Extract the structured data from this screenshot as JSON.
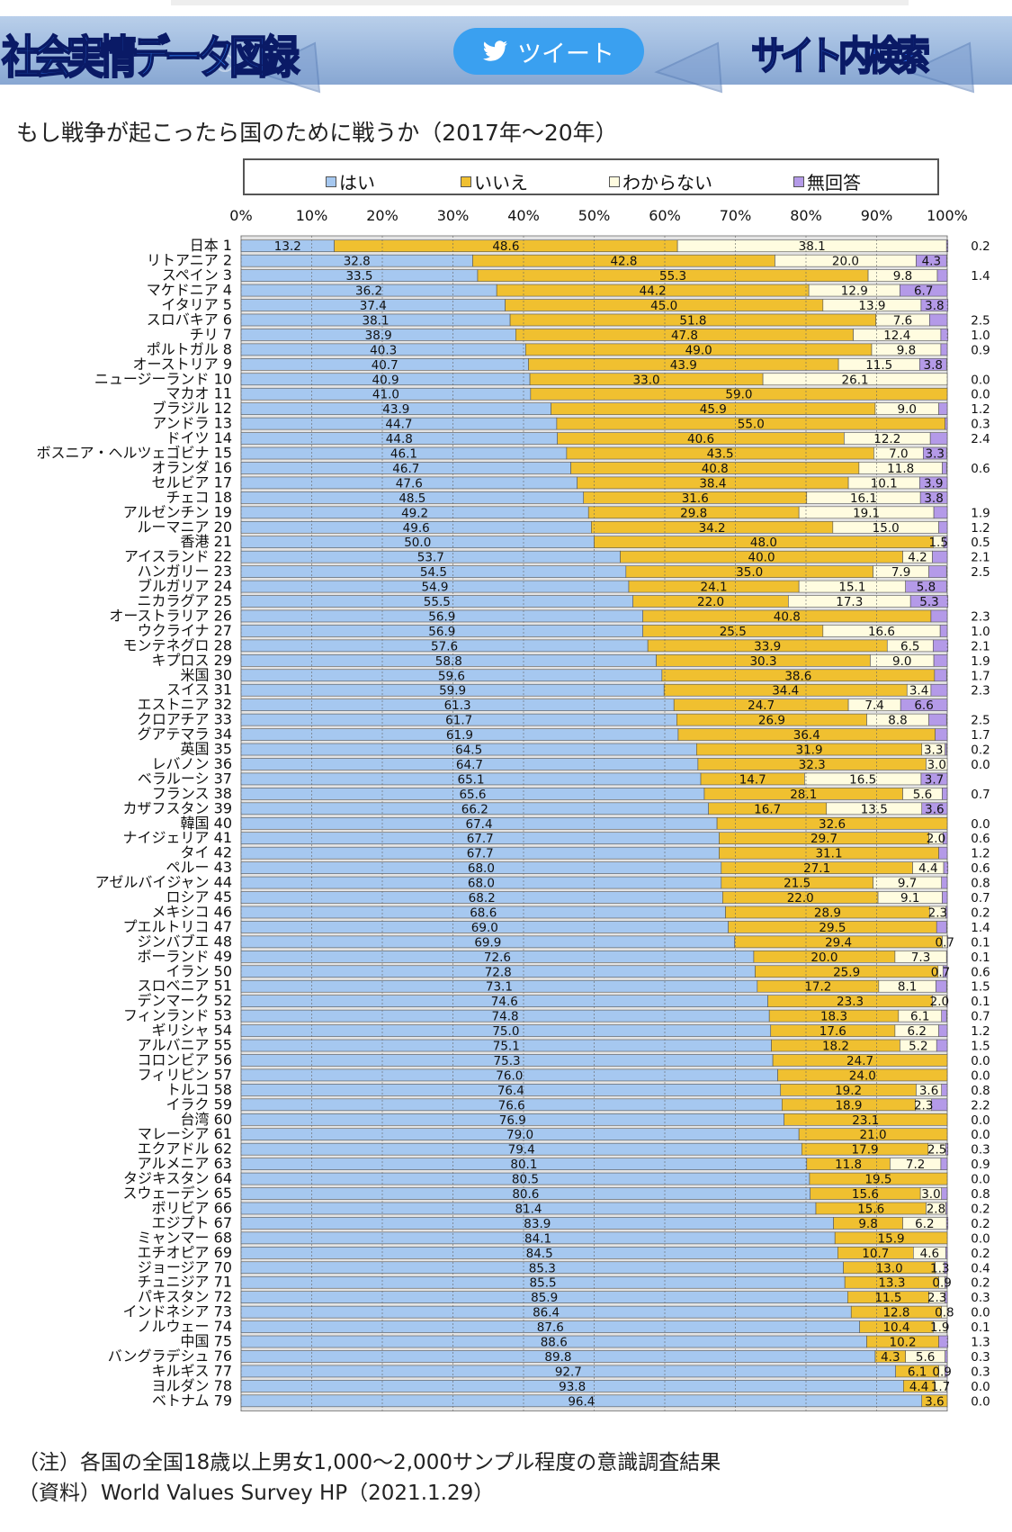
{
  "header": {
    "logo_text": "社会実情データ図録",
    "tweet_label": "ツイート",
    "site_search_label": "サイト内検索"
  },
  "chart_data": {
    "type": "bar",
    "stacked": true,
    "orientation": "horizontal",
    "title": "もし戦争が起こったら国のために戦うか（2017年～20年）",
    "x_ticks": [
      "0%",
      "10%",
      "20%",
      "30%",
      "40%",
      "50%",
      "60%",
      "70%",
      "80%",
      "90%",
      "100%"
    ],
    "xlim": [
      0,
      100
    ],
    "grid": true,
    "legend_position": "top",
    "series": [
      {
        "name": "はい",
        "color": "#a6c8f0"
      },
      {
        "name": "いいえ",
        "color": "#f0c030"
      },
      {
        "name": "わからない",
        "color": "#fffce0"
      },
      {
        "name": "無回答",
        "color": "#b49ae8"
      }
    ],
    "rows": [
      {
        "country": "日本",
        "rank": 1,
        "yes": 13.2,
        "no": 48.6,
        "dk": 38.1,
        "na": 0.2
      },
      {
        "country": "リトアニア",
        "rank": 2,
        "yes": 32.8,
        "no": 42.8,
        "dk": 20.0,
        "na": 4.3
      },
      {
        "country": "スペイン",
        "rank": 3,
        "yes": 33.5,
        "no": 55.3,
        "dk": 9.8,
        "na": 1.4
      },
      {
        "country": "マケドニア",
        "rank": 4,
        "yes": 36.2,
        "no": 44.2,
        "dk": 12.9,
        "na": 6.7
      },
      {
        "country": "イタリア",
        "rank": 5,
        "yes": 37.4,
        "no": 45.0,
        "dk": 13.9,
        "na": 3.8
      },
      {
        "country": "スロバキア",
        "rank": 6,
        "yes": 38.1,
        "no": 51.8,
        "dk": 7.6,
        "na": 2.5
      },
      {
        "country": "チリ",
        "rank": 7,
        "yes": 38.9,
        "no": 47.8,
        "dk": 12.4,
        "na": 1.0
      },
      {
        "country": "ポルトガル",
        "rank": 8,
        "yes": 40.3,
        "no": 49.0,
        "dk": 9.8,
        "na": 0.9
      },
      {
        "country": "オーストリア",
        "rank": 9,
        "yes": 40.7,
        "no": 43.9,
        "dk": 11.5,
        "na": 3.8
      },
      {
        "country": "ニュージーランド",
        "rank": 10,
        "yes": 40.9,
        "no": 33.0,
        "dk": 26.1,
        "na": 0.0
      },
      {
        "country": "マカオ",
        "rank": 11,
        "yes": 41.0,
        "no": 59.0,
        "dk": 0.0,
        "na": 0.0
      },
      {
        "country": "ブラジル",
        "rank": 12,
        "yes": 43.9,
        "no": 45.9,
        "dk": 9.0,
        "na": 1.2
      },
      {
        "country": "アンドラ",
        "rank": 13,
        "yes": 44.7,
        "no": 55.0,
        "dk": 0.0,
        "na": 0.3
      },
      {
        "country": "ドイツ",
        "rank": 14,
        "yes": 44.8,
        "no": 40.6,
        "dk": 12.2,
        "na": 2.4
      },
      {
        "country": "ボスニア・ヘルツェゴビナ",
        "rank": 15,
        "yes": 46.1,
        "no": 43.5,
        "dk": 7.0,
        "na": 3.3
      },
      {
        "country": "オランダ",
        "rank": 16,
        "yes": 46.7,
        "no": 40.8,
        "dk": 11.8,
        "na": 0.6
      },
      {
        "country": "セルビア",
        "rank": 17,
        "yes": 47.6,
        "no": 38.4,
        "dk": 10.1,
        "na": 3.9
      },
      {
        "country": "チェコ",
        "rank": 18,
        "yes": 48.5,
        "no": 31.6,
        "dk": 16.1,
        "na": 3.8
      },
      {
        "country": "アルゼンチン",
        "rank": 19,
        "yes": 49.2,
        "no": 29.8,
        "dk": 19.1,
        "na": 1.9
      },
      {
        "country": "ルーマニア",
        "rank": 20,
        "yes": 49.6,
        "no": 34.2,
        "dk": 15.0,
        "na": 1.2
      },
      {
        "country": "香港",
        "rank": 21,
        "yes": 50.0,
        "no": 48.0,
        "dk": 1.5,
        "na": 0.5
      },
      {
        "country": "アイスランド",
        "rank": 22,
        "yes": 53.7,
        "no": 40.0,
        "dk": 4.2,
        "na": 2.1
      },
      {
        "country": "ハンガリー",
        "rank": 23,
        "yes": 54.5,
        "no": 35.0,
        "dk": 7.9,
        "na": 2.5
      },
      {
        "country": "ブルガリア",
        "rank": 24,
        "yes": 54.9,
        "no": 24.1,
        "dk": 15.1,
        "na": 5.8
      },
      {
        "country": "ニカラグア",
        "rank": 25,
        "yes": 55.5,
        "no": 22.0,
        "dk": 17.3,
        "na": 5.3
      },
      {
        "country": "オーストラリア",
        "rank": 26,
        "yes": 56.9,
        "no": 40.8,
        "dk": 0.0,
        "na": 2.3
      },
      {
        "country": "ウクライナ",
        "rank": 27,
        "yes": 56.9,
        "no": 25.5,
        "dk": 16.6,
        "na": 1.0
      },
      {
        "country": "モンテネグロ",
        "rank": 28,
        "yes": 57.6,
        "no": 33.9,
        "dk": 6.5,
        "na": 2.1
      },
      {
        "country": "キプロス",
        "rank": 29,
        "yes": 58.8,
        "no": 30.3,
        "dk": 9.0,
        "na": 1.9
      },
      {
        "country": "米国",
        "rank": 30,
        "yes": 59.6,
        "no": 38.6,
        "dk": 0.0,
        "na": 1.7
      },
      {
        "country": "スイス",
        "rank": 31,
        "yes": 59.9,
        "no": 34.4,
        "dk": 3.4,
        "na": 2.3
      },
      {
        "country": "エストニア",
        "rank": 32,
        "yes": 61.3,
        "no": 24.7,
        "dk": 7.4,
        "na": 6.6
      },
      {
        "country": "クロアチア",
        "rank": 33,
        "yes": 61.7,
        "no": 26.9,
        "dk": 8.8,
        "na": 2.5
      },
      {
        "country": "グアテマラ",
        "rank": 34,
        "yes": 61.9,
        "no": 36.4,
        "dk": 0.0,
        "na": 1.7
      },
      {
        "country": "英国",
        "rank": 35,
        "yes": 64.5,
        "no": 31.9,
        "dk": 3.3,
        "na": 0.2
      },
      {
        "country": "レバノン",
        "rank": 36,
        "yes": 64.7,
        "no": 32.3,
        "dk": 3.0,
        "na": 0.0
      },
      {
        "country": "ベラルーシ",
        "rank": 37,
        "yes": 65.1,
        "no": 14.7,
        "dk": 16.5,
        "na": 3.7
      },
      {
        "country": "フランス",
        "rank": 38,
        "yes": 65.6,
        "no": 28.1,
        "dk": 5.6,
        "na": 0.7
      },
      {
        "country": "カザフスタン",
        "rank": 39,
        "yes": 66.2,
        "no": 16.7,
        "dk": 13.5,
        "na": 3.6
      },
      {
        "country": "韓国",
        "rank": 40,
        "yes": 67.4,
        "no": 32.6,
        "dk": 0.0,
        "na": 0.0
      },
      {
        "country": "ナイジェリア",
        "rank": 41,
        "yes": 67.7,
        "no": 29.7,
        "dk": 2.0,
        "na": 0.6
      },
      {
        "country": "タイ",
        "rank": 42,
        "yes": 67.7,
        "no": 31.1,
        "dk": 0.0,
        "na": 1.2
      },
      {
        "country": "ペルー",
        "rank": 43,
        "yes": 68.0,
        "no": 27.1,
        "dk": 4.4,
        "na": 0.6
      },
      {
        "country": "アゼルバイジャン",
        "rank": 44,
        "yes": 68.0,
        "no": 21.5,
        "dk": 9.7,
        "na": 0.8
      },
      {
        "country": "ロシア",
        "rank": 45,
        "yes": 68.2,
        "no": 22.0,
        "dk": 9.1,
        "na": 0.7
      },
      {
        "country": "メキシコ",
        "rank": 46,
        "yes": 68.6,
        "no": 28.9,
        "dk": 2.3,
        "na": 0.2
      },
      {
        "country": "プエルトリコ",
        "rank": 47,
        "yes": 69.0,
        "no": 29.5,
        "dk": 0.0,
        "na": 1.4
      },
      {
        "country": "ジンバブエ",
        "rank": 48,
        "yes": 69.9,
        "no": 29.4,
        "dk": 0.7,
        "na": 0.1
      },
      {
        "country": "ボーランド",
        "rank": 49,
        "yes": 72.6,
        "no": 20.0,
        "dk": 7.3,
        "na": 0.1
      },
      {
        "country": "イラン",
        "rank": 50,
        "yes": 72.8,
        "no": 25.9,
        "dk": 0.7,
        "na": 0.6
      },
      {
        "country": "スロベニア",
        "rank": 51,
        "yes": 73.1,
        "no": 17.2,
        "dk": 8.1,
        "na": 1.5
      },
      {
        "country": "デンマーク",
        "rank": 52,
        "yes": 74.6,
        "no": 23.3,
        "dk": 2.0,
        "na": 0.1
      },
      {
        "country": "フィンランド",
        "rank": 53,
        "yes": 74.8,
        "no": 18.3,
        "dk": 6.1,
        "na": 0.7
      },
      {
        "country": "ギリシャ",
        "rank": 54,
        "yes": 75.0,
        "no": 17.6,
        "dk": 6.2,
        "na": 1.2
      },
      {
        "country": "アルバニア",
        "rank": 55,
        "yes": 75.1,
        "no": 18.2,
        "dk": 5.2,
        "na": 1.5
      },
      {
        "country": "コロンビア",
        "rank": 56,
        "yes": 75.3,
        "no": 24.7,
        "dk": 0.0,
        "na": 0.0
      },
      {
        "country": "フィリピン",
        "rank": 57,
        "yes": 76.0,
        "no": 24.0,
        "dk": 0.0,
        "na": 0.0
      },
      {
        "country": "トルコ",
        "rank": 58,
        "yes": 76.4,
        "no": 19.2,
        "dk": 3.6,
        "na": 0.8
      },
      {
        "country": "イラク",
        "rank": 59,
        "yes": 76.6,
        "no": 18.9,
        "dk": 2.3,
        "na": 2.2
      },
      {
        "country": "台湾",
        "rank": 60,
        "yes": 76.9,
        "no": 23.1,
        "dk": 0.0,
        "na": 0.0
      },
      {
        "country": "マレーシア",
        "rank": 61,
        "yes": 79.0,
        "no": 21.0,
        "dk": 0.0,
        "na": 0.0
      },
      {
        "country": "エクアドル",
        "rank": 62,
        "yes": 79.4,
        "no": 17.9,
        "dk": 2.5,
        "na": 0.3
      },
      {
        "country": "アルメニア",
        "rank": 63,
        "yes": 80.1,
        "no": 11.8,
        "dk": 7.2,
        "na": 0.9
      },
      {
        "country": "タジキスタン",
        "rank": 64,
        "yes": 80.5,
        "no": 19.5,
        "dk": 0.0,
        "na": 0.0
      },
      {
        "country": "スウェーデン",
        "rank": 65,
        "yes": 80.6,
        "no": 15.6,
        "dk": 3.0,
        "na": 0.8
      },
      {
        "country": "ボリビア",
        "rank": 66,
        "yes": 81.4,
        "no": 15.6,
        "dk": 2.8,
        "na": 0.2
      },
      {
        "country": "エジプト",
        "rank": 67,
        "yes": 83.9,
        "no": 9.8,
        "dk": 6.2,
        "na": 0.2
      },
      {
        "country": "ミャンマー",
        "rank": 68,
        "yes": 84.1,
        "no": 15.9,
        "dk": 0.0,
        "na": 0.0
      },
      {
        "country": "エチオピア",
        "rank": 69,
        "yes": 84.5,
        "no": 10.7,
        "dk": 4.6,
        "na": 0.2
      },
      {
        "country": "ジョージア",
        "rank": 70,
        "yes": 85.3,
        "no": 13.0,
        "dk": 1.3,
        "na": 0.4
      },
      {
        "country": "チュニジア",
        "rank": 71,
        "yes": 85.5,
        "no": 13.3,
        "dk": 0.9,
        "na": 0.2
      },
      {
        "country": "パキスタン",
        "rank": 72,
        "yes": 85.9,
        "no": 11.5,
        "dk": 2.3,
        "na": 0.3
      },
      {
        "country": "インドネシア",
        "rank": 73,
        "yes": 86.4,
        "no": 12.8,
        "dk": 0.8,
        "na": 0.0
      },
      {
        "country": "ノルウェー",
        "rank": 74,
        "yes": 87.6,
        "no": 10.4,
        "dk": 1.9,
        "na": 0.1
      },
      {
        "country": "中国",
        "rank": 75,
        "yes": 88.6,
        "no": 10.2,
        "dk": 0.0,
        "na": 1.3
      },
      {
        "country": "バングラデシュ",
        "rank": 76,
        "yes": 89.8,
        "no": 4.3,
        "dk": 5.6,
        "na": 0.3
      },
      {
        "country": "キルギス",
        "rank": 77,
        "yes": 92.7,
        "no": 6.1,
        "dk": 0.9,
        "na": 0.3
      },
      {
        "country": "ヨルダン",
        "rank": 78,
        "yes": 93.8,
        "no": 4.4,
        "dk": 1.7,
        "na": 0.0
      },
      {
        "country": "ベトナム",
        "rank": 79,
        "yes": 96.4,
        "no": 3.6,
        "dk": 0.0,
        "na": 0.0
      }
    ]
  },
  "notes": [
    "（注）各国の全国18歳以上男女1,000～2,000サンプル程度の意識調査結果",
    "（資料）World Values Survey HP（2021.1.29）"
  ]
}
